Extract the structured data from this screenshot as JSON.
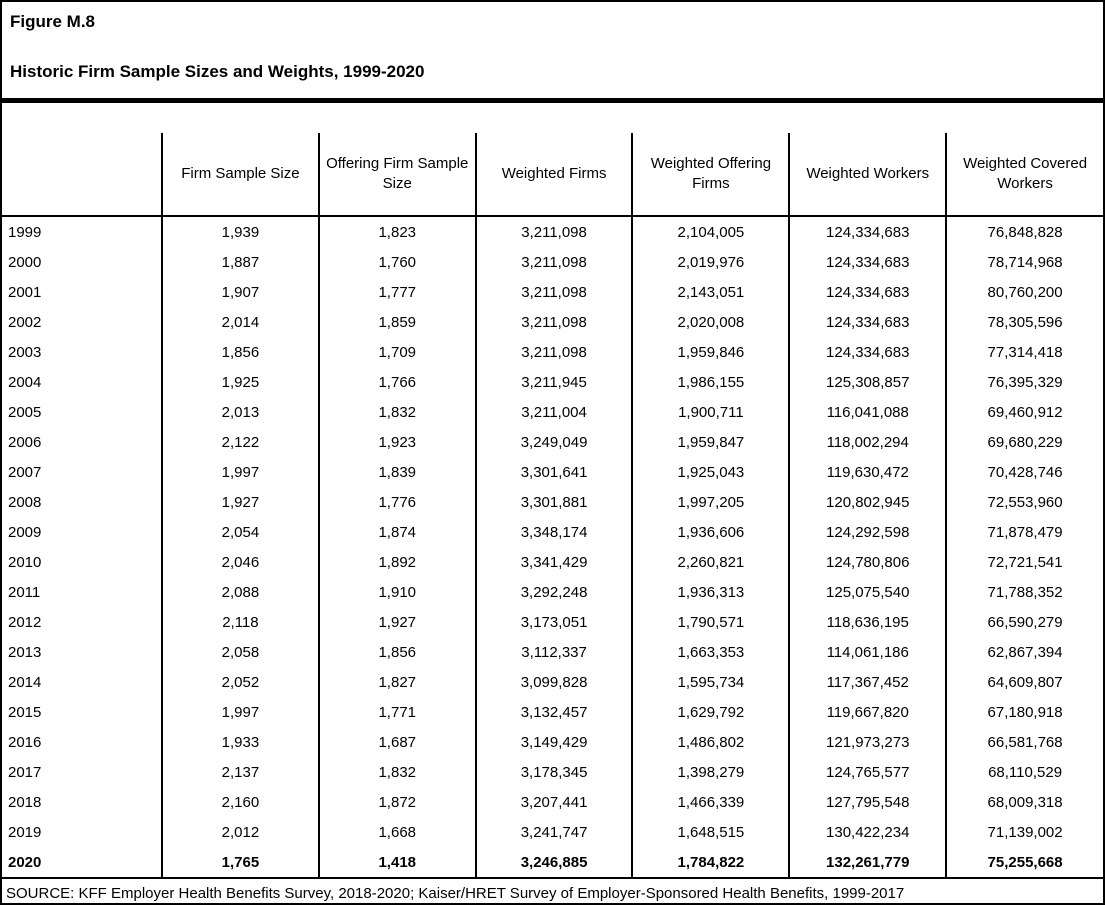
{
  "page": {
    "figure_label": "Figure M.8",
    "title": "Historic Firm Sample Sizes and Weights, 1999-2020",
    "source": "SOURCE: KFF Employer Health Benefits Survey, 2018-2020; Kaiser/HRET Survey of Employer-Sponsored Health Benefits, 1999-2017"
  },
  "colors": {
    "background": "#ffffff",
    "text": "#000000",
    "border": "#000000"
  },
  "table": {
    "columns": [
      "",
      "Firm Sample Size",
      "Offering Firm Sample Size",
      "Weighted Firms",
      "Weighted Offering Firms",
      "Weighted Workers",
      "Weighted Covered Workers"
    ],
    "rows": [
      {
        "year": "1999",
        "values": [
          "1,939",
          "1,823",
          "3,211,098",
          "2,104,005",
          "124,334,683",
          "76,848,828"
        ],
        "bold": false
      },
      {
        "year": "2000",
        "values": [
          "1,887",
          "1,760",
          "3,211,098",
          "2,019,976",
          "124,334,683",
          "78,714,968"
        ],
        "bold": false
      },
      {
        "year": "2001",
        "values": [
          "1,907",
          "1,777",
          "3,211,098",
          "2,143,051",
          "124,334,683",
          "80,760,200"
        ],
        "bold": false
      },
      {
        "year": "2002",
        "values": [
          "2,014",
          "1,859",
          "3,211,098",
          "2,020,008",
          "124,334,683",
          "78,305,596"
        ],
        "bold": false
      },
      {
        "year": "2003",
        "values": [
          "1,856",
          "1,709",
          "3,211,098",
          "1,959,846",
          "124,334,683",
          "77,314,418"
        ],
        "bold": false
      },
      {
        "year": "2004",
        "values": [
          "1,925",
          "1,766",
          "3,211,945",
          "1,986,155",
          "125,308,857",
          "76,395,329"
        ],
        "bold": false
      },
      {
        "year": "2005",
        "values": [
          "2,013",
          "1,832",
          "3,211,004",
          "1,900,711",
          "116,041,088",
          "69,460,912"
        ],
        "bold": false
      },
      {
        "year": "2006",
        "values": [
          "2,122",
          "1,923",
          "3,249,049",
          "1,959,847",
          "118,002,294",
          "69,680,229"
        ],
        "bold": false
      },
      {
        "year": "2007",
        "values": [
          "1,997",
          "1,839",
          "3,301,641",
          "1,925,043",
          "119,630,472",
          "70,428,746"
        ],
        "bold": false
      },
      {
        "year": "2008",
        "values": [
          "1,927",
          "1,776",
          "3,301,881",
          "1,997,205",
          "120,802,945",
          "72,553,960"
        ],
        "bold": false
      },
      {
        "year": "2009",
        "values": [
          "2,054",
          "1,874",
          "3,348,174",
          "1,936,606",
          "124,292,598",
          "71,878,479"
        ],
        "bold": false
      },
      {
        "year": "2010",
        "values": [
          "2,046",
          "1,892",
          "3,341,429",
          "2,260,821",
          "124,780,806",
          "72,721,541"
        ],
        "bold": false
      },
      {
        "year": "2011",
        "values": [
          "2,088",
          "1,910",
          "3,292,248",
          "1,936,313",
          "125,075,540",
          "71,788,352"
        ],
        "bold": false
      },
      {
        "year": "2012",
        "values": [
          "2,118",
          "1,927",
          "3,173,051",
          "1,790,571",
          "118,636,195",
          "66,590,279"
        ],
        "bold": false
      },
      {
        "year": "2013",
        "values": [
          "2,058",
          "1,856",
          "3,112,337",
          "1,663,353",
          "114,061,186",
          "62,867,394"
        ],
        "bold": false
      },
      {
        "year": "2014",
        "values": [
          "2,052",
          "1,827",
          "3,099,828",
          "1,595,734",
          "117,367,452",
          "64,609,807"
        ],
        "bold": false
      },
      {
        "year": "2015",
        "values": [
          "1,997",
          "1,771",
          "3,132,457",
          "1,629,792",
          "119,667,820",
          "67,180,918"
        ],
        "bold": false
      },
      {
        "year": "2016",
        "values": [
          "1,933",
          "1,687",
          "3,149,429",
          "1,486,802",
          "121,973,273",
          "66,581,768"
        ],
        "bold": false
      },
      {
        "year": "2017",
        "values": [
          "2,137",
          "1,832",
          "3,178,345",
          "1,398,279",
          "124,765,577",
          "68,110,529"
        ],
        "bold": false
      },
      {
        "year": "2018",
        "values": [
          "2,160",
          "1,872",
          "3,207,441",
          "1,466,339",
          "127,795,548",
          "68,009,318"
        ],
        "bold": false
      },
      {
        "year": "2019",
        "values": [
          "2,012",
          "1,668",
          "3,241,747",
          "1,648,515",
          "130,422,234",
          "71,139,002"
        ],
        "bold": false
      },
      {
        "year": "2020",
        "values": [
          "1,765",
          "1,418",
          "3,246,885",
          "1,784,822",
          "132,261,779",
          "75,255,668"
        ],
        "bold": true
      }
    ]
  }
}
